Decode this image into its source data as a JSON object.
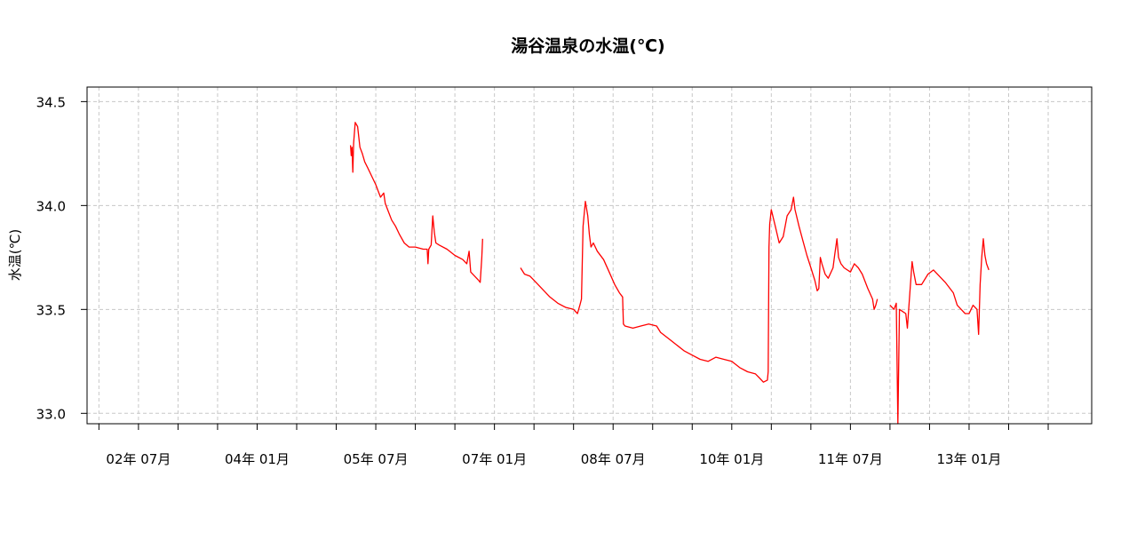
{
  "chart_data": {
    "type": "line",
    "title": "湯谷温泉の水温(℃)",
    "xlabel": "",
    "ylabel": "水温(℃)",
    "x_unit": "year",
    "xlim": [
      2001.85,
      2014.55
    ],
    "ylim": [
      32.95,
      34.57
    ],
    "yticks": [
      33.0,
      33.5,
      34.0,
      34.5
    ],
    "ytick_labels": [
      "33.0",
      "33.5",
      "34.0",
      "34.5"
    ],
    "xticks": [
      2002.0,
      2002.5,
      2003.0,
      2003.5,
      2004.0,
      2004.5,
      2005.0,
      2005.5,
      2006.0,
      2006.5,
      2007.0,
      2007.5,
      2008.0,
      2008.5,
      2009.0,
      2009.5,
      2010.0,
      2010.5,
      2011.0,
      2011.5,
      2012.0,
      2012.5,
      2013.0,
      2013.5,
      2014.0
    ],
    "xtick_labels": [
      {
        "x": 2002.5,
        "label": "02年 07月"
      },
      {
        "x": 2004.0,
        "label": "04年 01月"
      },
      {
        "x": 2005.5,
        "label": "05年 07月"
      },
      {
        "x": 2007.0,
        "label": "07年 01月"
      },
      {
        "x": 2008.5,
        "label": "08年 07月"
      },
      {
        "x": 2010.0,
        "label": "10年 01月"
      },
      {
        "x": 2011.5,
        "label": "11年 07月"
      },
      {
        "x": 2013.0,
        "label": "13年 01月"
      }
    ],
    "grid": true,
    "legend": "none",
    "line_color": "#ff0000",
    "grid_color": "#c8c8c8",
    "series": [
      {
        "segments": [
          [
            [
              5.18,
              34.29
            ],
            [
              5.19,
              34.24
            ],
            [
              5.2,
              34.28
            ],
            [
              5.21,
              34.16
            ],
            [
              5.22,
              34.3
            ],
            [
              5.24,
              34.4
            ],
            [
              5.27,
              34.38
            ],
            [
              5.3,
              34.28
            ],
            [
              5.33,
              34.25
            ],
            [
              5.36,
              34.21
            ],
            [
              5.4,
              34.18
            ],
            [
              5.45,
              34.14
            ],
            [
              5.5,
              34.1
            ],
            [
              5.53,
              34.07
            ],
            [
              5.56,
              34.04
            ],
            [
              5.6,
              34.06
            ],
            [
              5.62,
              34.01
            ],
            [
              5.66,
              33.97
            ],
            [
              5.7,
              33.93
            ],
            [
              5.75,
              33.9
            ],
            [
              5.8,
              33.86
            ],
            [
              5.86,
              33.82
            ],
            [
              5.92,
              33.8
            ],
            [
              6.0,
              33.8
            ],
            [
              6.1,
              33.79
            ],
            [
              6.15,
              33.79
            ],
            [
              6.16,
              33.72
            ],
            [
              6.17,
              33.79
            ],
            [
              6.2,
              33.81
            ],
            [
              6.22,
              33.95
            ],
            [
              6.24,
              33.87
            ],
            [
              6.26,
              33.82
            ],
            [
              6.3,
              33.81
            ],
            [
              6.4,
              33.79
            ],
            [
              6.5,
              33.76
            ],
            [
              6.6,
              33.74
            ],
            [
              6.65,
              33.72
            ],
            [
              6.68,
              33.78
            ],
            [
              6.7,
              33.68
            ],
            [
              6.75,
              33.66
            ],
            [
              6.8,
              33.64
            ],
            [
              6.82,
              33.63
            ],
            [
              6.84,
              33.75
            ],
            [
              6.85,
              33.84
            ]
          ],
          [
            [
              7.33,
              33.7
            ],
            [
              7.38,
              33.67
            ],
            [
              7.45,
              33.66
            ],
            [
              7.5,
              33.64
            ],
            [
              7.6,
              33.6
            ],
            [
              7.7,
              33.56
            ],
            [
              7.8,
              33.53
            ],
            [
              7.9,
              33.51
            ],
            [
              8.0,
              33.5
            ],
            [
              8.05,
              33.48
            ],
            [
              8.08,
              33.52
            ],
            [
              8.1,
              33.55
            ],
            [
              8.12,
              33.9
            ],
            [
              8.15,
              34.02
            ],
            [
              8.18,
              33.95
            ],
            [
              8.2,
              33.86
            ],
            [
              8.22,
              33.8
            ],
            [
              8.25,
              33.82
            ],
            [
              8.3,
              33.78
            ],
            [
              8.38,
              33.74
            ],
            [
              8.45,
              33.68
            ],
            [
              8.52,
              33.62
            ],
            [
              8.58,
              33.58
            ],
            [
              8.62,
              33.56
            ],
            [
              8.63,
              33.43
            ],
            [
              8.65,
              33.42
            ],
            [
              8.75,
              33.41
            ],
            [
              8.85,
              33.42
            ],
            [
              8.95,
              33.43
            ],
            [
              9.05,
              33.42
            ],
            [
              9.1,
              33.39
            ],
            [
              9.2,
              33.36
            ],
            [
              9.3,
              33.33
            ],
            [
              9.4,
              33.3
            ],
            [
              9.5,
              33.28
            ],
            [
              9.6,
              33.26
            ],
            [
              9.7,
              33.25
            ],
            [
              9.8,
              33.27
            ],
            [
              9.9,
              33.26
            ],
            [
              10.0,
              33.25
            ],
            [
              10.1,
              33.22
            ],
            [
              10.2,
              33.2
            ],
            [
              10.3,
              33.19
            ],
            [
              10.35,
              33.17
            ],
            [
              10.4,
              33.15
            ],
            [
              10.45,
              33.16
            ],
            [
              10.46,
              33.2
            ],
            [
              10.47,
              33.8
            ],
            [
              10.48,
              33.91
            ],
            [
              10.5,
              33.98
            ],
            [
              10.55,
              33.9
            ],
            [
              10.6,
              33.82
            ],
            [
              10.65,
              33.85
            ],
            [
              10.7,
              33.95
            ],
            [
              10.75,
              33.98
            ],
            [
              10.78,
              34.04
            ],
            [
              10.8,
              33.98
            ],
            [
              10.85,
              33.9
            ],
            [
              10.9,
              33.83
            ],
            [
              10.95,
              33.76
            ],
            [
              11.0,
              33.7
            ],
            [
              11.05,
              33.64
            ],
            [
              11.08,
              33.59
            ],
            [
              11.1,
              33.6
            ],
            [
              11.12,
              33.75
            ],
            [
              11.14,
              33.72
            ],
            [
              11.18,
              33.67
            ],
            [
              11.22,
              33.65
            ],
            [
              11.28,
              33.7
            ],
            [
              11.3,
              33.76
            ],
            [
              11.33,
              33.84
            ],
            [
              11.35,
              33.75
            ],
            [
              11.38,
              33.72
            ],
            [
              11.42,
              33.7
            ],
            [
              11.5,
              33.68
            ],
            [
              11.55,
              33.72
            ],
            [
              11.6,
              33.7
            ],
            [
              11.65,
              33.67
            ],
            [
              11.72,
              33.6
            ],
            [
              11.78,
              33.55
            ],
            [
              11.8,
              33.5
            ],
            [
              11.82,
              33.52
            ],
            [
              11.84,
              33.55
            ]
          ],
          [
            [
              12.0,
              33.52
            ],
            [
              12.05,
              33.5
            ],
            [
              12.08,
              33.53
            ],
            [
              12.1,
              32.95
            ],
            [
              12.12,
              33.5
            ],
            [
              12.2,
              33.48
            ],
            [
              12.22,
              33.41
            ],
            [
              12.24,
              33.52
            ],
            [
              12.28,
              33.73
            ],
            [
              12.3,
              33.68
            ],
            [
              12.33,
              33.62
            ],
            [
              12.4,
              33.62
            ],
            [
              12.48,
              33.67
            ],
            [
              12.55,
              33.69
            ],
            [
              12.6,
              33.67
            ],
            [
              12.7,
              33.63
            ],
            [
              12.8,
              33.58
            ],
            [
              12.85,
              33.52
            ],
            [
              12.9,
              33.5
            ],
            [
              12.95,
              33.48
            ],
            [
              13.0,
              33.48
            ],
            [
              13.05,
              33.52
            ],
            [
              13.1,
              33.5
            ],
            [
              13.12,
              33.38
            ],
            [
              13.14,
              33.62
            ],
            [
              13.16,
              33.75
            ],
            [
              13.18,
              33.84
            ],
            [
              13.2,
              33.76
            ],
            [
              13.22,
              33.72
            ],
            [
              13.25,
              33.69
            ]
          ]
        ]
      }
    ]
  }
}
